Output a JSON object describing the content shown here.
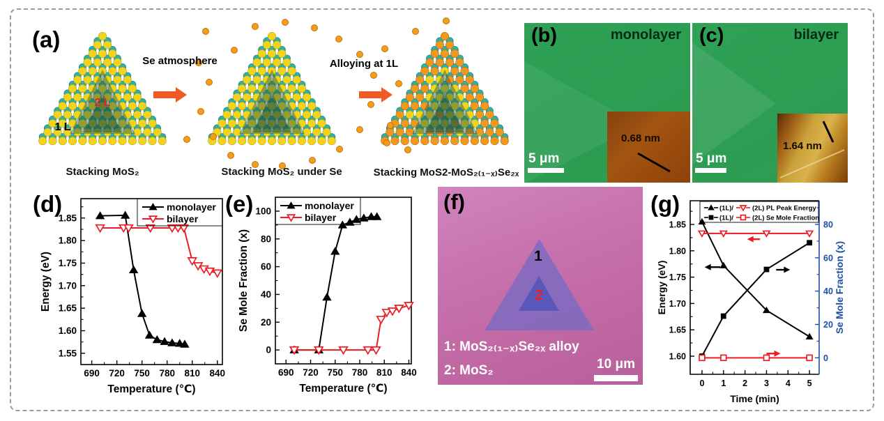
{
  "panels": {
    "a": {
      "label": "(a)",
      "step1_label": "Se atmosphere",
      "step2_label": "Alloying at 1L",
      "caption1": "Stacking MoS₂",
      "caption2": "Stacking MoS₂ under Se",
      "caption3": "Stacking MoS2-MoS₂₍₁₋ₓ₎Se₂ₓ",
      "layer1": "1 L",
      "layer2": "2 L"
    },
    "b": {
      "label": "(b)",
      "title": "monolayer",
      "scalebar": "5 μm",
      "inset_thickness": "0.68 nm"
    },
    "c": {
      "label": "(c)",
      "title": "bilayer",
      "scalebar": "5 μm",
      "inset_thickness": "1.64 nm"
    },
    "d": {
      "label": "(d)"
    },
    "e": {
      "label": "(e)"
    },
    "f": {
      "label": "(f)",
      "marker1": "1",
      "marker2": "2",
      "legend1": "1: MoS₂₍₁₋ₓ₎Se₂ₓ alloy",
      "legend2": "2: MoS₂",
      "scalebar": "10 μm"
    },
    "g": {
      "label": "(g)"
    }
  },
  "colors": {
    "accent_red": "#ed1c24",
    "axis_blue": "#1b4fa6",
    "arrow_orange": "#f15a22",
    "atom_yellow": "#f2d41f",
    "atom_teal": "#2fb0a5",
    "atom_orange": "#f0991f",
    "micrograph_green": "#2da053",
    "optical_pink": "#c873ae"
  },
  "chart_data": [
    {
      "id": "d",
      "type": "line",
      "xlabel": "Temperature (℃)",
      "ylabel": "Energy (eV)",
      "xlim": [
        677,
        846
      ],
      "ylim": [
        1.525,
        1.893
      ],
      "xticks": [
        690,
        720,
        750,
        780,
        810,
        840
      ],
      "xticks_minor": [
        705,
        735,
        765,
        795,
        825
      ],
      "yticks": [
        "1.55",
        "1.60",
        "1.65",
        "1.70",
        "1.75",
        "1.80",
        "1.85"
      ],
      "yticks_minor": [
        1.575,
        1.625,
        1.675,
        1.725,
        1.775,
        1.825,
        1.875
      ],
      "legend": {
        "position": "top-right",
        "entries": [
          {
            "label": "monolayer",
            "marker": "triangle-up-filled",
            "color": "#000000"
          },
          {
            "label": "bilayer",
            "marker": "triangle-down-open",
            "color": "#ed1c24"
          }
        ]
      },
      "series": [
        {
          "name": "monolayer",
          "color": "#000000",
          "marker": "triangle-up-filled",
          "x": [
            700,
            730,
            740,
            750,
            759,
            768,
            777,
            786,
            795,
            801
          ],
          "y": [
            1.855,
            1.856,
            1.735,
            1.638,
            1.59,
            1.58,
            1.576,
            1.573,
            1.572,
            1.57
          ]
        },
        {
          "name": "bilayer",
          "color": "#ed1c24",
          "marker": "triangle-down-open",
          "x": [
            700,
            728,
            734,
            760,
            786,
            793,
            800,
            810,
            817,
            824,
            831,
            840
          ],
          "y": [
            1.828,
            1.828,
            1.828,
            1.828,
            1.828,
            1.828,
            1.828,
            1.755,
            1.744,
            1.737,
            1.732,
            1.728
          ]
        }
      ]
    },
    {
      "id": "e",
      "type": "line",
      "xlabel": "Temperature (℃)",
      "ylabel": "Se Mole Fraction (x)",
      "xlim": [
        677,
        843
      ],
      "ylim": [
        -10,
        110
      ],
      "xticks": [
        690,
        720,
        750,
        780,
        810,
        840
      ],
      "xticks_minor": [
        705,
        735,
        765,
        795,
        825
      ],
      "yticks": [
        0,
        20,
        40,
        60,
        80,
        100
      ],
      "yticks_minor": [
        10,
        30,
        50,
        70,
        90
      ],
      "legend": {
        "position": "top-left",
        "entries": [
          {
            "label": "monolayer",
            "marker": "triangle-up-filled",
            "color": "#000000"
          },
          {
            "label": "bilayer",
            "marker": "triangle-down-open",
            "color": "#ed1c24"
          }
        ]
      },
      "series": [
        {
          "name": "monolayer",
          "color": "#000000",
          "marker": "triangle-up-filled",
          "x": [
            700,
            730,
            740,
            750,
            759,
            768,
            776,
            785,
            794,
            801
          ],
          "y": [
            0,
            0,
            38,
            71,
            90,
            92,
            94,
            95,
            96,
            96
          ]
        },
        {
          "name": "bilayer",
          "color": "#ed1c24",
          "marker": "triangle-down-open",
          "x": [
            700,
            730,
            760,
            790,
            800,
            806,
            813,
            820,
            828,
            840
          ],
          "y": [
            0,
            0,
            0,
            0,
            0,
            22,
            27,
            28,
            30,
            32
          ]
        }
      ]
    },
    {
      "id": "g",
      "type": "line",
      "xlabel": "Time (min)",
      "ylabel": "Energy (eV)",
      "ylabel_right": "Se Mole Fraction (x)",
      "xlim": [
        -0.55,
        5.45
      ],
      "ylim": [
        1.5656,
        1.895
      ],
      "y2lim": [
        -9.9,
        94.2
      ],
      "xticks": [
        0,
        1,
        2,
        3,
        4,
        5
      ],
      "xticks_minor": [
        0.5,
        1.5,
        2.5,
        3.5,
        4.5
      ],
      "yticks": [
        "1.60",
        "1.65",
        "1.70",
        "1.75",
        "1.80",
        "1.85"
      ],
      "yticks_minor": [
        1.625,
        1.675,
        1.725,
        1.775,
        1.825,
        1.875
      ],
      "y2ticks": [
        0,
        20,
        40,
        60,
        80
      ],
      "y2ticks_minor": [
        10,
        30,
        50,
        70,
        90
      ],
      "legend": {
        "rows": [
          {
            "m1": "triangle-up-filled",
            "c1": "#000000",
            "t1": "(1L)/",
            "m2": "triangle-down-open",
            "c2": "#ed1c24",
            "t2": "(2L) PL Peak Energy"
          },
          {
            "m1": "square-filled",
            "c1": "#000000",
            "t1": "(1L)/",
            "m2": "square-open",
            "c2": "#ed1c24",
            "t2": "(2L) Se Mole Fraction"
          }
        ]
      },
      "series": [
        {
          "name": "(1L) PL Peak Energy",
          "axis": "left",
          "color": "#000000",
          "marker": "triangle-up-filled",
          "x": [
            0,
            1,
            3,
            5
          ],
          "y": [
            1.855,
            1.772,
            1.687,
            1.637
          ]
        },
        {
          "name": "(1L) Se Mole Fraction",
          "axis": "right",
          "color": "#000000",
          "marker": "square-filled",
          "x": [
            0,
            1,
            3,
            5
          ],
          "y": [
            1,
            25,
            53,
            69
          ]
        },
        {
          "name": "(2L) PL Peak Energy",
          "axis": "left",
          "color": "#ed1c24",
          "marker": "triangle-down-open",
          "x": [
            0,
            1,
            3,
            5
          ],
          "y": [
            1.833,
            1.833,
            1.833,
            1.833
          ]
        },
        {
          "name": "(2L) Se Mole Fraction",
          "axis": "right",
          "color": "#ed1c24",
          "marker": "square-open",
          "x": [
            0,
            1,
            3,
            5
          ],
          "y": [
            0,
            0,
            0,
            0
          ]
        }
      ],
      "arrows": [
        {
          "x1": 0.85,
          "x2": 0.12,
          "y": 1.769,
          "color": "#000000"
        },
        {
          "x1": 3.45,
          "x2": 4.1,
          "y": 1.764,
          "color": "#000000"
        },
        {
          "x1": 2.7,
          "x2": 2.1,
          "y": 1.822,
          "color": "#ed1c24"
        },
        {
          "x1": 3.0,
          "x2": 3.65,
          "y": 1.605,
          "color": "#ed1c24"
        }
      ]
    }
  ]
}
